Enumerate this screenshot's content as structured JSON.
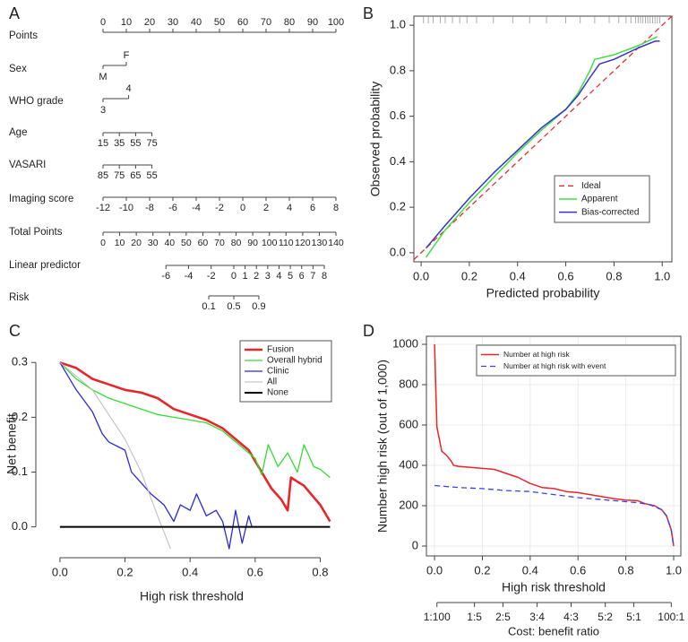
{
  "chart_data": [
    {
      "type": "nomogram",
      "label": "A",
      "rows": [
        {
          "name": "Points",
          "xlim": [
            0,
            100
          ],
          "points": [
            0,
            100
          ],
          "ticks": [
            0,
            10,
            20,
            30,
            40,
            50,
            60,
            70,
            80,
            90,
            100
          ]
        },
        {
          "name": "Sex",
          "categories": [
            "M",
            "F"
          ],
          "points": [
            0,
            10
          ]
        },
        {
          "name": "WHO grade",
          "categories": [
            "3",
            "4"
          ],
          "points": [
            0,
            11
          ]
        },
        {
          "name": "Age",
          "xlim": [
            15,
            75
          ],
          "points": [
            0,
            21
          ],
          "ticks": [
            15,
            35,
            55,
            75
          ]
        },
        {
          "name": "VASARI",
          "xlim": [
            85,
            55
          ],
          "points": [
            0,
            21
          ],
          "ticks": [
            85,
            75,
            65,
            55
          ]
        },
        {
          "name": "Imaging score",
          "xlim": [
            -12,
            8
          ],
          "points": [
            0,
            100
          ],
          "ticks": [
            -12,
            -10,
            -8,
            -6,
            -4,
            -2,
            0,
            2,
            4,
            6,
            8
          ]
        },
        {
          "name": "Total Points",
          "xlim": [
            0,
            140
          ],
          "points": [
            0,
            100
          ],
          "ticks": [
            0,
            10,
            20,
            30,
            40,
            50,
            60,
            70,
            80,
            90,
            100,
            110,
            120,
            130,
            140
          ]
        },
        {
          "name": "Linear predictor",
          "xlim": [
            -6,
            8
          ],
          "points": [
            27,
            95
          ],
          "ticks": [
            -6,
            -4,
            -2,
            0,
            1,
            2,
            3,
            4,
            5,
            6,
            7,
            8
          ]
        },
        {
          "name": "Risk",
          "xlim": [
            0.1,
            0.9
          ],
          "points": [
            45.4,
            66.9
          ],
          "scale": "logit",
          "ticks": [
            0.1,
            0.5,
            0.9
          ]
        }
      ]
    },
    {
      "type": "line",
      "label": "B",
      "xlabel": "Predicted probability",
      "ylabel": "Observed probability",
      "xlim": [
        -0.03,
        1.04
      ],
      "ylim": [
        -0.04,
        1.04
      ],
      "frame": true,
      "legend": "lower right",
      "xticks": [
        {
          "value": 0,
          "label": "0.0"
        },
        {
          "value": 0.2,
          "label": "0.2"
        },
        {
          "value": 0.4,
          "label": "0.4"
        },
        {
          "value": 0.6,
          "label": "0.6"
        },
        {
          "value": 0.8,
          "label": "0.8"
        },
        {
          "value": 1,
          "label": "1.0"
        }
      ],
      "yticks": [
        {
          "value": 0,
          "label": "0.0"
        },
        {
          "value": 0.2,
          "label": "0.2"
        },
        {
          "value": 0.4,
          "label": "0.4"
        },
        {
          "value": 0.6,
          "label": "0.6"
        },
        {
          "value": 0.8,
          "label": "0.8"
        },
        {
          "value": 1,
          "label": "1.0"
        }
      ],
      "rug": [
        0.01,
        0.03,
        0.05,
        0.08,
        0.1,
        0.13,
        0.16,
        0.19,
        0.23,
        0.3,
        0.38,
        0.45,
        0.52,
        0.6,
        0.66,
        0.72,
        0.78,
        0.82,
        0.85,
        0.87,
        0.89,
        0.9,
        0.91,
        0.92,
        0.93,
        0.94,
        0.95,
        0.96,
        0.97,
        0.98,
        0.99
      ],
      "series": [
        {
          "name": "Ideal",
          "color": "#e03030",
          "dash": "dashed",
          "linewidth": 1.3,
          "x": [
            -0.03,
            1.04
          ],
          "values": [
            -0.03,
            1.04
          ]
        },
        {
          "name": "Apparent",
          "color": "#44dd44",
          "linewidth": 1.5,
          "x": [
            0.02,
            0.1,
            0.2,
            0.3,
            0.4,
            0.5,
            0.6,
            0.65,
            0.7,
            0.72,
            0.8,
            0.9,
            0.98
          ],
          "values": [
            -0.02,
            0.1,
            0.22,
            0.33,
            0.44,
            0.54,
            0.63,
            0.7,
            0.8,
            0.85,
            0.87,
            0.91,
            0.95
          ]
        },
        {
          "name": "Bias-corrected",
          "color": "#3333cc",
          "linewidth": 1.5,
          "x": [
            0.02,
            0.1,
            0.2,
            0.3,
            0.4,
            0.5,
            0.6,
            0.65,
            0.7,
            0.74,
            0.8,
            0.9,
            0.97,
            0.99
          ],
          "values": [
            0.02,
            0.12,
            0.24,
            0.35,
            0.45,
            0.55,
            0.63,
            0.69,
            0.77,
            0.83,
            0.85,
            0.9,
            0.93,
            0.93
          ]
        }
      ]
    },
    {
      "type": "line",
      "label": "C",
      "xlabel": "High risk threshold",
      "ylabel": "Net benefit",
      "xlim": [
        -0.03,
        0.84
      ],
      "ylim": [
        -0.04,
        0.343
      ],
      "frame": false,
      "legend": "upper right",
      "xticks": [
        {
          "value": 0,
          "label": "0.0"
        },
        {
          "value": 0.2,
          "label": "0.2"
        },
        {
          "value": 0.4,
          "label": "0.4"
        },
        {
          "value": 0.6,
          "label": "0.6"
        },
        {
          "value": 0.8,
          "label": "0.8"
        }
      ],
      "yticks": [
        {
          "value": 0,
          "label": "0.0"
        },
        {
          "value": 0.1,
          "label": "0.1"
        },
        {
          "value": 0.2,
          "label": "0.2"
        },
        {
          "value": 0.3,
          "label": "0.3"
        }
      ],
      "series": [
        {
          "name": "Fusion",
          "color": "#e8262a",
          "linewidth": 2.6,
          "x": [
            0,
            0.05,
            0.1,
            0.15,
            0.2,
            0.25,
            0.3,
            0.35,
            0.4,
            0.45,
            0.5,
            0.55,
            0.58,
            0.6,
            0.65,
            0.68,
            0.7,
            0.71,
            0.75,
            0.8,
            0.83
          ],
          "values": [
            0.3,
            0.29,
            0.27,
            0.26,
            0.25,
            0.245,
            0.235,
            0.215,
            0.205,
            0.195,
            0.18,
            0.155,
            0.14,
            0.12,
            0.07,
            0.05,
            0.03,
            0.09,
            0.075,
            0.04,
            0.01
          ]
        },
        {
          "name": "Overall hybrid",
          "color": "#33dd33",
          "linewidth": 1.3,
          "x": [
            0,
            0.05,
            0.1,
            0.15,
            0.2,
            0.25,
            0.3,
            0.35,
            0.4,
            0.45,
            0.5,
            0.55,
            0.6,
            0.62,
            0.64,
            0.67,
            0.7,
            0.73,
            0.75,
            0.78,
            0.8,
            0.83
          ],
          "values": [
            0.3,
            0.27,
            0.25,
            0.235,
            0.225,
            0.215,
            0.205,
            0.2,
            0.195,
            0.19,
            0.175,
            0.15,
            0.125,
            0.095,
            0.15,
            0.11,
            0.135,
            0.1,
            0.15,
            0.11,
            0.105,
            0.09
          ]
        },
        {
          "name": "Clinic",
          "color": "#2a2ad8",
          "linewidth": 1.3,
          "x": [
            0,
            0.05,
            0.1,
            0.13,
            0.15,
            0.2,
            0.22,
            0.25,
            0.28,
            0.3,
            0.32,
            0.35,
            0.37,
            0.4,
            0.42,
            0.45,
            0.48,
            0.5,
            0.52,
            0.54,
            0.56,
            0.58,
            0.59,
            0.83
          ],
          "values": [
            0.3,
            0.25,
            0.21,
            0.17,
            0.155,
            0.14,
            0.1,
            0.08,
            0.06,
            0.05,
            0.04,
            0.01,
            0.04,
            0.03,
            0.06,
            0.02,
            0.03,
            0.01,
            -0.04,
            0.03,
            -0.03,
            0.02,
            0,
            0
          ]
        },
        {
          "name": "All",
          "color": "#bbbbbb",
          "linewidth": 1,
          "x": [
            0,
            0.1,
            0.2,
            0.25,
            0.3,
            0.34
          ],
          "values": [
            0.3,
            0.25,
            0.16,
            0.1,
            0.02,
            -0.04
          ]
        },
        {
          "name": "None",
          "color": "#000000",
          "linewidth": 2,
          "x": [
            0,
            0.83
          ],
          "values": [
            0,
            0
          ]
        }
      ]
    },
    {
      "type": "line",
      "label": "D",
      "xlabel": "High risk threshold",
      "ylabel": "Number high risk (out of 1,000)",
      "x2label": "Cost: benefit ratio",
      "xlim": [
        -0.034,
        1.03
      ],
      "ylim": [
        -49,
        1040
      ],
      "frame": true,
      "grid": true,
      "legend": "upper right",
      "xticks": [
        {
          "value": 0,
          "label": "0.0"
        },
        {
          "value": 0.2,
          "label": "0.2"
        },
        {
          "value": 0.4,
          "label": "0.4"
        },
        {
          "value": 0.6,
          "label": "0.6"
        },
        {
          "value": 0.8,
          "label": "0.8"
        },
        {
          "value": 1,
          "label": "1.0"
        }
      ],
      "yticks": [
        0,
        200,
        400,
        600,
        800,
        1000
      ],
      "x2ticks": [
        {
          "value": 0.01,
          "label": "1:100"
        },
        {
          "value": 0.167,
          "label": "1:5"
        },
        {
          "value": 0.286,
          "label": "2:5"
        },
        {
          "value": 0.429,
          "label": "3:4"
        },
        {
          "value": 0.571,
          "label": "4:3"
        },
        {
          "value": 0.714,
          "label": "5:2"
        },
        {
          "value": 0.833,
          "label": "5:1"
        },
        {
          "value": 0.99,
          "label": "100:1"
        }
      ],
      "series": [
        {
          "name": "Number at high risk",
          "color": "#e8262a",
          "linewidth": 1.5,
          "x": [
            0,
            0.01,
            0.02,
            0.03,
            0.05,
            0.07,
            0.08,
            0.1,
            0.2,
            0.25,
            0.3,
            0.35,
            0.4,
            0.45,
            0.5,
            0.55,
            0.6,
            0.65,
            0.7,
            0.75,
            0.8,
            0.85,
            0.88,
            0.92,
            0.95,
            0.97,
            0.99,
            1
          ],
          "values": [
            1000,
            590,
            530,
            470,
            450,
            420,
            400,
            395,
            385,
            380,
            360,
            340,
            310,
            290,
            285,
            270,
            265,
            255,
            245,
            235,
            228,
            225,
            210,
            200,
            180,
            150,
            80,
            0
          ]
        },
        {
          "name": "Number at high risk with event",
          "color": "#3344ee",
          "dash": "dashed",
          "linewidth": 1.3,
          "x": [
            0,
            0.05,
            0.1,
            0.2,
            0.3,
            0.4,
            0.5,
            0.6,
            0.7,
            0.8,
            0.85,
            0.9,
            0.95,
            0.97,
            0.99,
            1
          ],
          "values": [
            300,
            295,
            290,
            285,
            275,
            270,
            255,
            240,
            230,
            220,
            215,
            205,
            180,
            150,
            80,
            0
          ]
        }
      ]
    }
  ]
}
